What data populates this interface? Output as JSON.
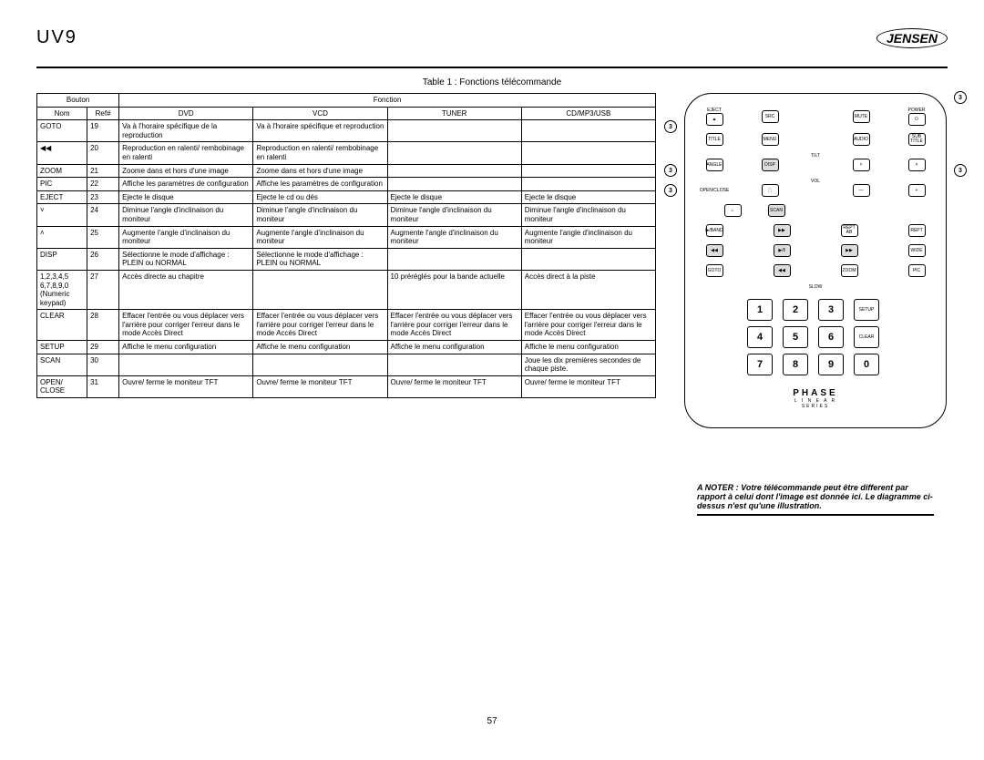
{
  "header": {
    "model": "UV9",
    "brand": "JENSEN"
  },
  "caption": "Table 1 : Fonctions télécommande",
  "table": {
    "head1": {
      "bouton": "Bouton",
      "fonction": "Fonction"
    },
    "head2": {
      "nom": "Nom",
      "ref": "Ref#",
      "dvd": "DVD",
      "vcd": "VCD",
      "tuner": "TUNER",
      "cd": "CD/MP3/USB"
    },
    "rows": [
      {
        "nom": "GOTO",
        "ref": "19",
        "dvd": "Va à l'horaire spécifique de la reproduction",
        "vcd": "Va à l'horaire spécifique et reproduction",
        "tun": "",
        "cd": ""
      },
      {
        "nom": "◀◀",
        "ref": "20",
        "dvd": "Reproduction en ralenti/ rembobinage en ralenti",
        "vcd": "Reproduction en ralenti/ rembobinage en ralenti",
        "tun": "",
        "cd": ""
      },
      {
        "nom": "ZOOM",
        "ref": "21",
        "dvd": "Zoome dans et hors d'une image",
        "vcd": "Zoome dans et hors d'une image",
        "tun": "",
        "cd": ""
      },
      {
        "nom": "PIC",
        "ref": "22",
        "dvd": "Affiche les paramètres de configuration",
        "vcd": "Affiche les paramètres de configuration",
        "tun": "",
        "cd": ""
      },
      {
        "nom": "EJECT",
        "ref": "23",
        "dvd": "Ejecte le disque",
        "vcd": "Ejecte le cd ou dés",
        "tun": "Ejecte le disque",
        "cd": "Ejecte le disque"
      },
      {
        "nom": "˅",
        "ref": "24",
        "dvd": "Diminue l'angle d'inclinaison du moniteur",
        "vcd": "Diminue l'angle d'inclinaison du moniteur",
        "tun": "Diminue l'angle d'inclinaison du moniteur",
        "cd": "Diminue l'angle d'inclinaison du moniteur"
      },
      {
        "nom": "˄",
        "ref": "25",
        "dvd": "Augmente l'angle d'inclinaison du moniteur",
        "vcd": "Augmente l'angle d'inclinaison du moniteur",
        "tun": "Augmente l'angle d'inclinaison du moniteur",
        "cd": "Augmente l'angle d'inclinaison du moniteur"
      },
      {
        "nom": "DISP",
        "ref": "26",
        "dvd": "Sélectionne le mode d'affichage : PLEIN ou NORMAL",
        "vcd": "Sélectionne le mode d'affichage : PLEIN ou NORMAL",
        "tun": "",
        "cd": ""
      },
      {
        "nom": "1,2,3,4,5 6,7,8,9,0 (Numeric keypad)",
        "ref": "27",
        "dvd": "Accès directe au chapitre",
        "vcd": "",
        "tun": "10 préréglés pour la bande actuelle",
        "cd": "Accès direct à la piste"
      },
      {
        "nom": "CLEAR",
        "ref": "28",
        "dvd": "Effacer l'entrée ou vous déplacer vers l'arrière pour corriger l'erreur dans le mode Accès Direct",
        "vcd": "Effacer l'entrée ou vous déplacer vers l'arrière pour corriger l'erreur dans le mode Accès Direct",
        "tun": "Effacer l'entrée ou vous déplacer vers l'arrière pour corriger l'erreur dans le mode Accès Direct",
        "cd": "Effacer l'entrée ou vous déplacer vers l'arrière pour corriger l'erreur dans le mode Accès Direct"
      },
      {
        "nom": "SETUP",
        "ref": "29",
        "dvd": "Affiche le menu configuration",
        "vcd": "Affiche le menu configuration",
        "tun": "Affiche le menu configuration",
        "cd": "Affiche le menu configuration"
      },
      {
        "nom": "SCAN",
        "ref": "30",
        "dvd": "",
        "vcd": "",
        "tun": "",
        "cd": "Joue les dix premières secondes de chaque piste."
      },
      {
        "nom": "OPEN/ CLOSE",
        "ref": "31",
        "dvd": "Ouvre/ ferme le moniteur TFT",
        "vcd": "Ouvre/ ferme le moniteur TFT",
        "tun": "Ouvre/ ferme le moniteur TFT",
        "cd": "Ouvre/ ferme le moniteur TFT"
      }
    ]
  },
  "remote": {
    "refs": {
      "top_right": "3",
      "left_mid": "3",
      "left_mid2": "3",
      "right_mid": "3"
    },
    "row1": [
      "EJECT",
      "▲",
      "SRC",
      "MUTE",
      "⏻",
      "POWER"
    ],
    "row2": [
      "TITLE",
      "MENU",
      "AUDIO",
      "SUB TITLE"
    ],
    "tilt_label": "TILT",
    "row3": [
      "ANGLE",
      "DISP",
      "˅",
      "˄"
    ],
    "vol_label": "VOL",
    "row4": [
      "OPEN/CLOSE",
      "—",
      "+"
    ],
    "row5": [
      "⌂",
      "SCAN"
    ],
    "row6": [
      "▶/BAND",
      "▶▶",
      "REPT AB",
      "REPT"
    ],
    "row7": [
      "◀◀",
      "▶/‖",
      "▶▶",
      "WIDE"
    ],
    "row8": [
      "GOTO",
      "◀◀",
      "ZOOM",
      "PIC"
    ],
    "slow": "SLOW",
    "numbers": [
      "1",
      "2",
      "3",
      "4",
      "5",
      "6",
      "7",
      "8",
      "9",
      "0"
    ],
    "setup": "SETUP",
    "clear": "CLEAR",
    "brand": "PHASE",
    "sub": "L I N E A R",
    "series": "SERIES"
  },
  "note": "A NOTER : Votre télécommande peut être different par rapport à celui dont l'image est donnée ici. Le diagramme ci-dessus n'est qu'une illustration.",
  "page": "57"
}
